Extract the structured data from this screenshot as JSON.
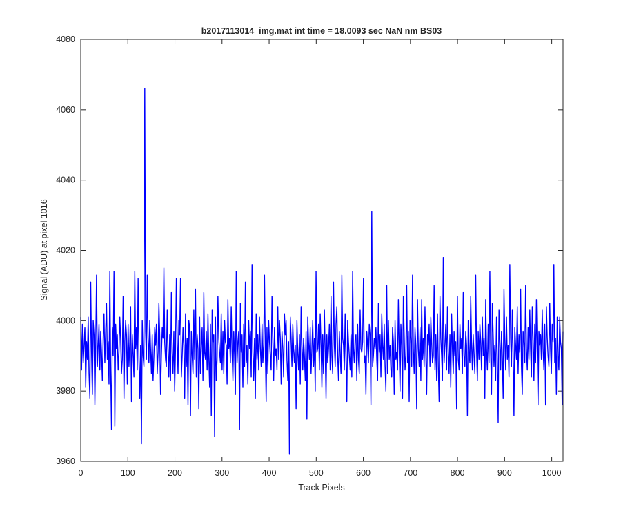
{
  "chart_data": {
    "type": "line",
    "title": "b2017113014_img.mat int time = 18.0093 sec  NaN nm BS03",
    "xlabel": "Track Pixels",
    "ylabel": "Signal (ADU) at pixel 1016",
    "xlim": [
      0,
      1024
    ],
    "ylim": [
      3960,
      4080
    ],
    "xticks": [
      0,
      100,
      200,
      300,
      400,
      500,
      600,
      700,
      800,
      900,
      1000
    ],
    "yticks": [
      3960,
      3980,
      4000,
      4020,
      4040,
      4060,
      4080
    ],
    "grid": false,
    "legend": "none",
    "line_color": "#0000ff",
    "series": [
      {
        "x_start": 0,
        "x_step": 1,
        "values": [
          4001,
          3986,
          3999,
          3988,
          3993,
          3998,
          3981,
          3994,
          3989,
          4001,
          3985,
          3978,
          4011,
          3991,
          3979,
          4000,
          3996,
          3976,
          3992,
          4013,
          3987,
          3993,
          3999,
          3986,
          3997,
          3991,
          3983,
          3995,
          4002,
          3988,
          3997,
          4005,
          3989,
          3994,
          3982,
          4014,
          3986,
          3969,
          3998,
          3990,
          4014,
          3970,
          3999,
          3992,
          3996,
          3986,
          3991,
          4001,
          3995,
          3985,
          3989,
          4007,
          3978,
          3994,
          4000,
          3996,
          3982,
          3999,
          3987,
          3994,
          4004,
          3977,
          3996,
          3990,
          3984,
          4014,
          3992,
          3998,
          3986,
          4012,
          3989,
          3978,
          3993,
          3965,
          4000,
          3990,
          3987,
          4066,
          3997,
          3989,
          4013,
          3995,
          3988,
          4000,
          3992,
          3985,
          3996,
          3983,
          3990,
          3998,
          3993,
          3999,
          3985,
          3991,
          4005,
          3996,
          3979,
          3990,
          3998,
          3995,
          4015,
          3994,
          3989,
          3987,
          4003,
          3992,
          3984,
          3996,
          3983,
          4008,
          3991,
          3985,
          3997,
          3980,
          3992,
          4012,
          3995,
          3985,
          4000,
          3996,
          4012,
          3984,
          3990,
          3998,
          3993,
          3978,
          4002,
          3987,
          3995,
          3976,
          4000,
          3998,
          3973,
          3997,
          3990,
          3985,
          4003,
          3989,
          4009,
          3984,
          3996,
          3992,
          3975,
          4001,
          3985,
          3993,
          3998,
          3983,
          4008,
          3991,
          3989,
          3997,
          3986,
          4002,
          3990,
          3981,
          3999,
          3973,
          4003,
          3994,
          3996,
          3967,
          4001,
          3983,
          3989,
          4007,
          3995,
          3991,
          3988,
          4002,
          3986,
          3997,
          3985,
          4000,
          3994,
          3993,
          3982,
          4006,
          3992,
          3995,
          3988,
          4004,
          3991,
          3983,
          3997,
          3990,
          3979,
          4014,
          3988,
          3994,
          3997,
          3969,
          4005,
          3991,
          3996,
          3981,
          3999,
          3987,
          4011,
          3988,
          3993,
          3982,
          4000,
          3992,
          3997,
          3984,
          4016,
          3991,
          3983,
          3995,
          3978,
          4002,
          3989,
          3996,
          3986,
          4001,
          3992,
          3987,
          3999,
          3988,
          3993,
          4013,
          3991,
          3977,
          3998,
          3985,
          4000,
          3994,
          3990,
          3986,
          4007,
          3995,
          3983,
          3998,
          3990,
          3992,
          3986,
          4004,
          3989,
          4000,
          3995,
          3982,
          3997,
          3992,
          3984,
          4002,
          3996,
          4000,
          3989,
          3983,
          3994,
          3962,
          4001,
          3995,
          3987,
          3999,
          3992,
          3988,
          3993,
          3975,
          4000,
          3991,
          3986,
          3996,
          3982,
          4004,
          3993,
          3986,
          3995,
          3990,
          3983,
          3997,
          3972,
          4001,
          3994,
          3989,
          3998,
          3985,
          3992,
          4000,
          3987,
          3995,
          3980,
          4014,
          3991,
          3992,
          3999,
          3986,
          4002,
          3993,
          3981,
          3996,
          3985,
          4003,
          3991,
          3978,
          3996,
          3988,
          3992,
          3999,
          3986,
          4007,
          3990,
          3985,
          4011,
          3993,
          3987,
          3999,
          4004,
          3990,
          3983,
          3997,
          3990,
          3985,
          4013,
          3995,
          3993,
          3986,
          4002,
          3989,
          3977,
          4000,
          3994,
          3990,
          3986,
          3996,
          3984,
          4014,
          3992,
          3988,
          3995,
          3996,
          3983,
          3999,
          3989,
          3985,
          4003,
          3992,
          3991,
          3994,
          4012,
          3988,
          3990,
          3979,
          3997,
          3993,
          3988,
          3999,
          3996,
          3976,
          4031,
          3987,
          3990,
          3995,
          3992,
          3998,
          3989,
          3983,
          4005,
          3991,
          3996,
          3984,
          4002,
          3993,
          3989,
          3999,
          3987,
          3980,
          4010,
          3985,
          4000,
          3989,
          3993,
          3986,
          3984,
          3998,
          3994,
          3979,
          4000,
          3989,
          3991,
          3986,
          4006,
          3992,
          3980,
          3999,
          3993,
          3978,
          4007,
          3996,
          3986,
          3990,
          4010,
          3988,
          3997,
          3977,
          4000,
          3995,
          3987,
          4013,
          3992,
          3985,
          3998,
          3993,
          3975,
          4006,
          3992,
          3987,
          3998,
          3983,
          4006,
          3989,
          3995,
          3987,
          4004,
          3991,
          3979,
          3996,
          3993,
          3999,
          3987,
          4001,
          3994,
          3988,
          3990,
          4010,
          3986,
          3996,
          3983,
          4002,
          3987,
          3977,
          4007,
          3995,
          3990,
          3983,
          4018,
          3988,
          3993,
          3999,
          3986,
          4004,
          3991,
          3985,
          3996,
          3981,
          4002,
          3992,
          3985,
          3997,
          3990,
          3994,
          3975,
          4007,
          3989,
          3986,
          3999,
          3992,
          3995,
          3985,
          4008,
          3990,
          3987,
          3997,
          3993,
          3973,
          4000,
          3991,
          3988,
          4007,
          3994,
          3986,
          3996,
          3990,
          3985,
          4013,
          3992,
          3983,
          3997,
          3989,
          3999,
          3994,
          3986,
          4001,
          3990,
          3995,
          3978,
          4006,
          3992,
          3986,
          3999,
          3988,
          4014,
          3991,
          3979,
          4005,
          3996,
          3987,
          3993,
          3983,
          4001,
          3989,
          3971,
          4003,
          3994,
          3986,
          3997,
          3990,
          3978,
          4009,
          3995,
          3986,
          4001,
          3989,
          3993,
          3984,
          4016,
          3995,
          3987,
          4003,
          3991,
          3973,
          3998,
          3993,
          3989,
          4004,
          3985,
          3996,
          3991,
          4009,
          3987,
          3979,
          3997,
          3994,
          3988,
          4010,
          3992,
          3986,
          3998,
          3989,
          4003,
          3992,
          3984,
          4004,
          3995,
          3983,
          3999,
          3988,
          4006,
          3991,
          3976,
          3997,
          3993,
          3996,
          3989,
          4003,
          3992,
          3986,
          3999,
          3976,
          4004,
          3995,
          3990,
          3987,
          4005,
          3992,
          3985,
          3999,
          3994,
          4016,
          3988,
          3995,
          3979,
          4001,
          3990,
          3986,
          4001,
          3994,
          3992,
          3976,
          3997
        ]
      }
    ]
  }
}
